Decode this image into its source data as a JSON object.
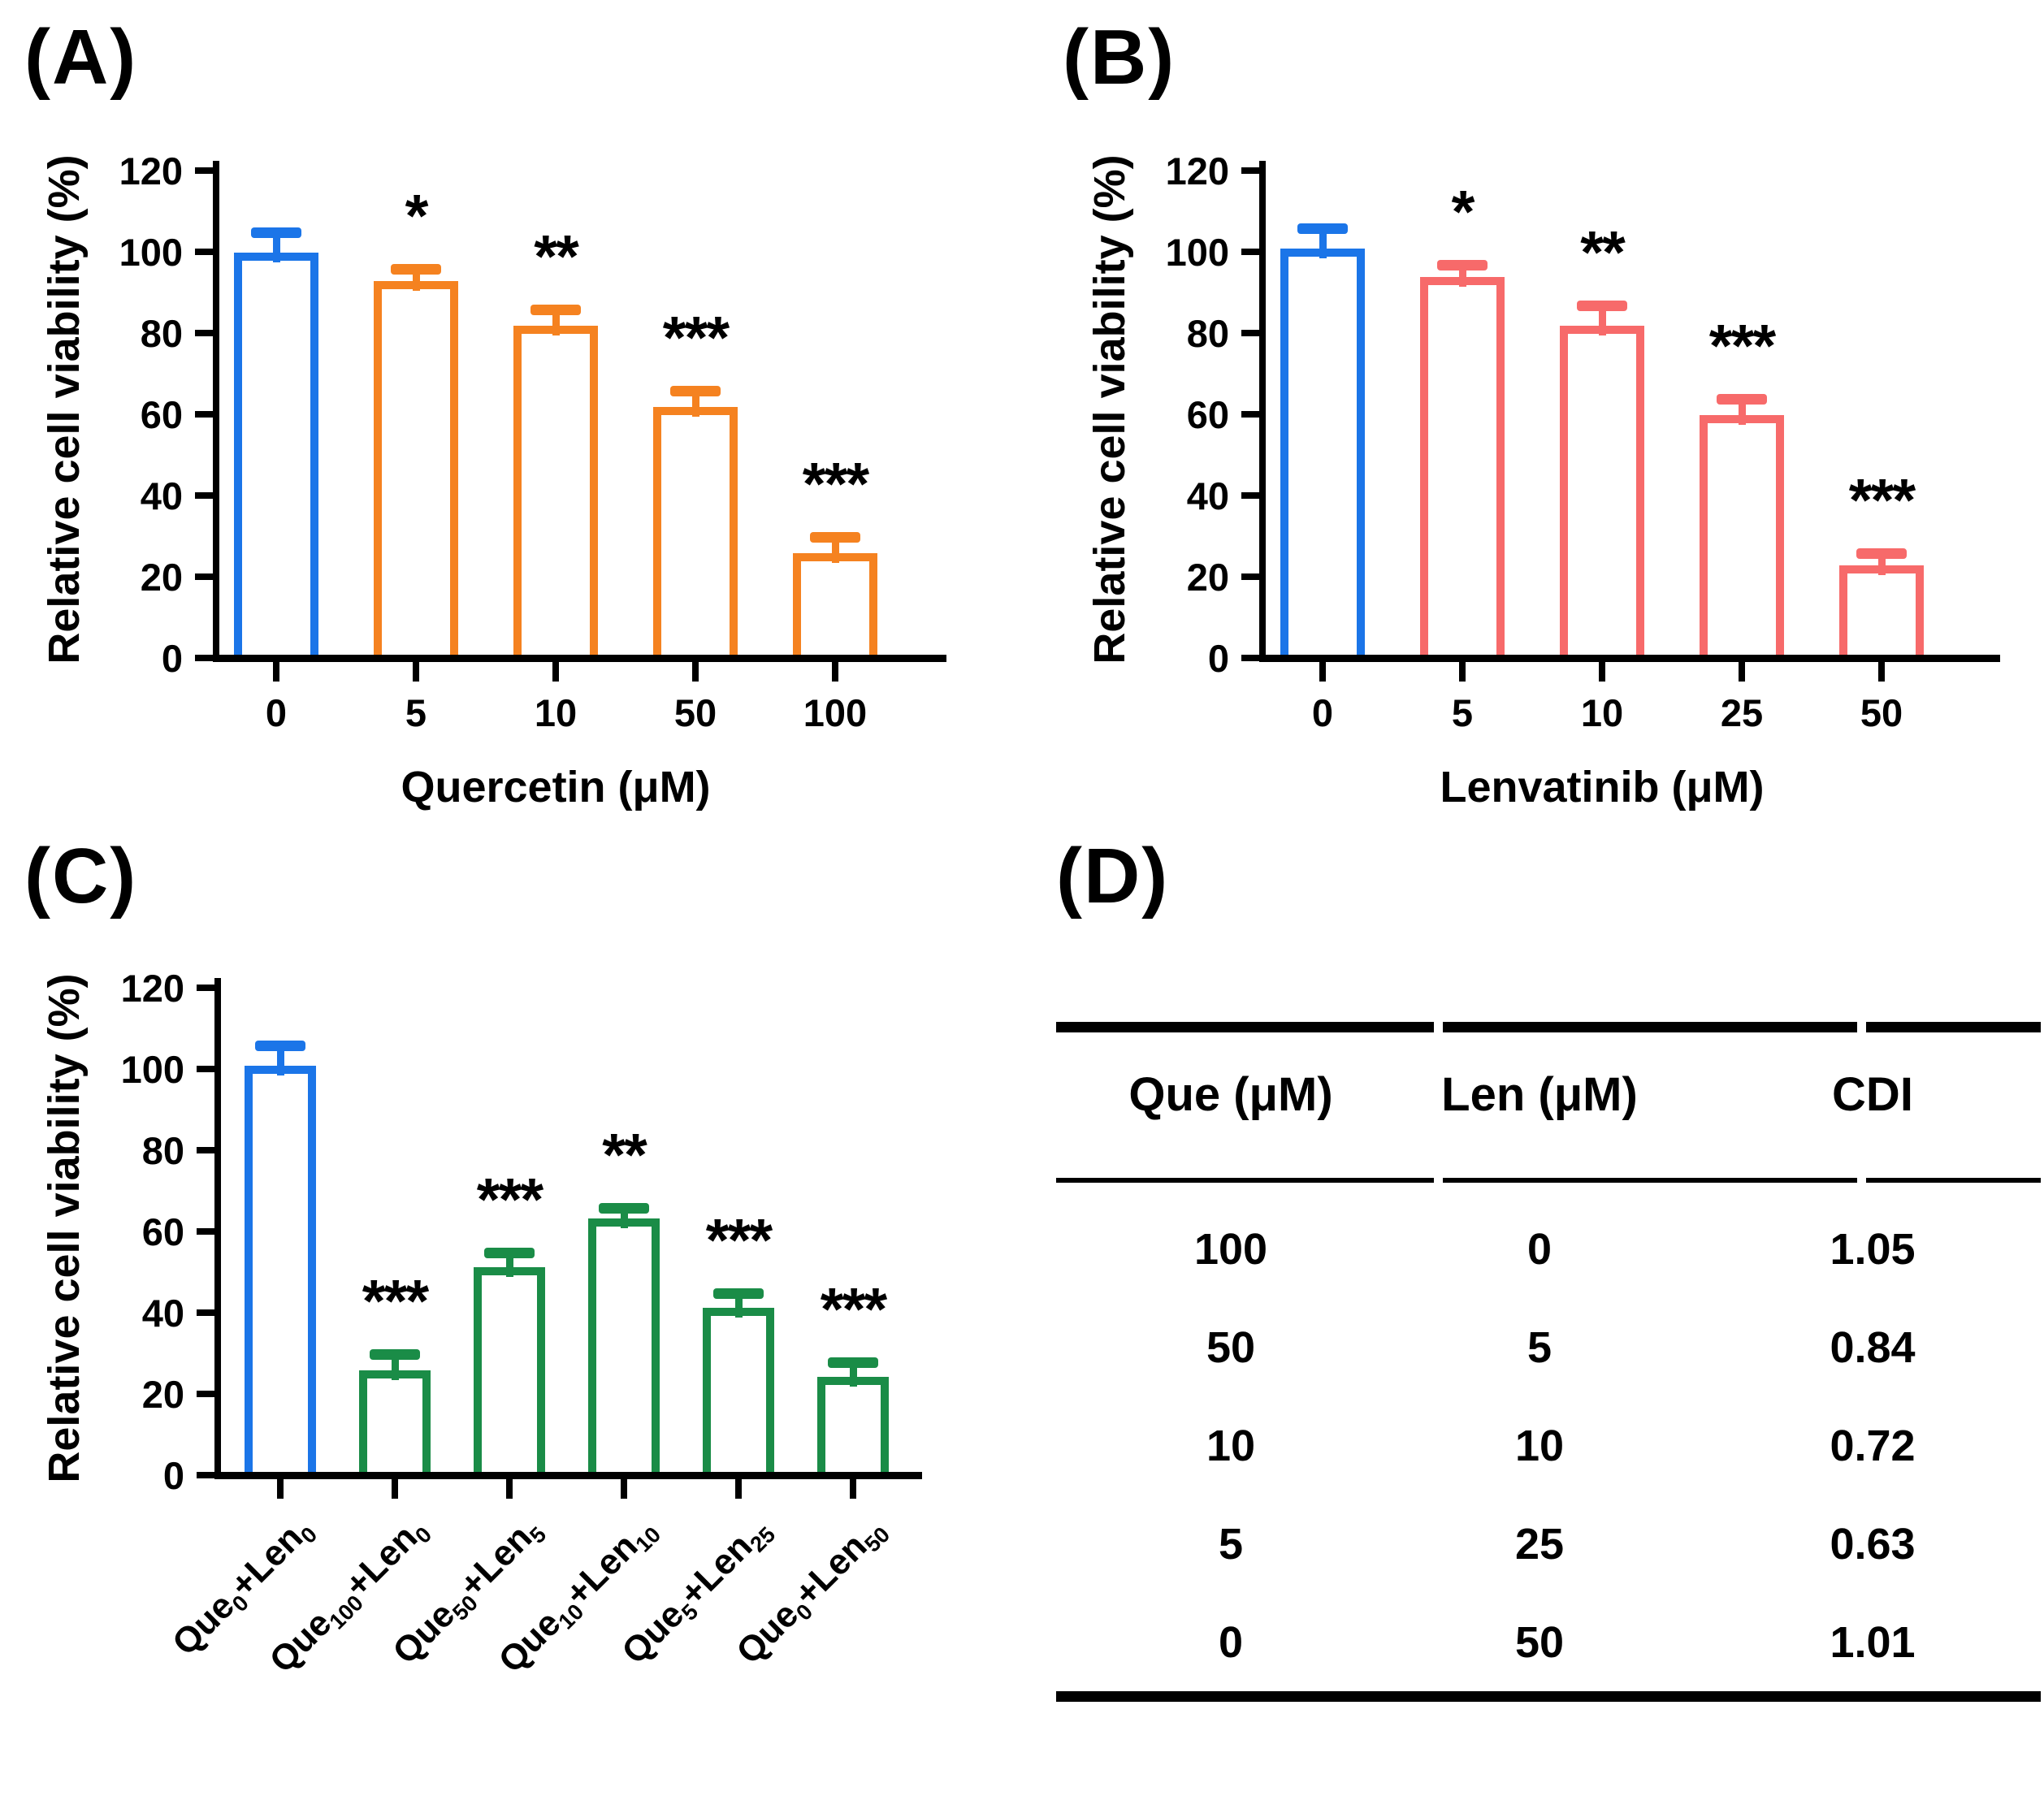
{
  "figure": {
    "background": "#ffffff",
    "panel_labels": {
      "a": "(A)",
      "b": "(B)",
      "c": "(C)",
      "d": "(D)"
    }
  },
  "colors": {
    "control_blue": "#1B75E8",
    "quercetin_orange": "#F58220",
    "lenvatinib_red": "#F76A6A",
    "combination_green": "#1A8C47",
    "axis_black": "#000000",
    "significance_black": "#000000"
  },
  "chart_data": [
    {
      "panel": "A",
      "type": "bar",
      "title": "",
      "ylabel": "Relative cell viability (%)",
      "xlabel": "Quercetin (μM)",
      "ylim": [
        0,
        120
      ],
      "grid": false,
      "legend": null,
      "yticks": [
        "0",
        "20",
        "40",
        "60",
        "80",
        "100",
        "120"
      ],
      "categories": [
        "0",
        "5",
        "10",
        "50",
        "100"
      ],
      "values": [
        99,
        92,
        81,
        61,
        25
      ],
      "errors_plus": [
        5,
        3,
        4,
        4,
        4
      ],
      "significance": [
        "",
        "*",
        "**",
        "***",
        "***"
      ],
      "bar_colors": [
        "#1B75E8",
        "#F58220",
        "#F58220",
        "#F58220",
        "#F58220"
      ],
      "bar_fill": "#ffffff"
    },
    {
      "panel": "B",
      "type": "bar",
      "title": "",
      "ylabel": "Relative cell viability (%)",
      "xlabel": "Lenvatinib (μM)",
      "ylim": [
        0,
        120
      ],
      "grid": false,
      "legend": null,
      "yticks": [
        "0",
        "20",
        "40",
        "60",
        "80",
        "100",
        "120"
      ],
      "categories": [
        "0",
        "5",
        "10",
        "25",
        "50"
      ],
      "values": [
        100,
        93,
        81,
        59,
        22
      ],
      "errors_plus": [
        5,
        3,
        5,
        4,
        3
      ],
      "significance": [
        "",
        "*",
        "**",
        "***",
        "***"
      ],
      "bar_colors": [
        "#1B75E8",
        "#F76A6A",
        "#F76A6A",
        "#F76A6A",
        "#F76A6A"
      ],
      "bar_fill": "#ffffff"
    },
    {
      "panel": "C",
      "type": "bar",
      "title": "",
      "ylabel": "Relative cell viability (%)",
      "xlabel": "",
      "ylim": [
        0,
        120
      ],
      "grid": false,
      "legend": null,
      "yticks": [
        "0",
        "20",
        "40",
        "60",
        "80",
        "100",
        "120"
      ],
      "categories": [
        "Que0+Len0",
        "Que100+Len0",
        "Que50+Len5",
        "Que10+Len10",
        "Que5+Len25",
        "Que0+Len50"
      ],
      "categories_rich": [
        [
          {
            "t": "Que"
          },
          {
            "t": "0",
            "s": 1
          },
          {
            "t": "+Len"
          },
          {
            "t": "0",
            "s": 1
          }
        ],
        [
          {
            "t": "Que"
          },
          {
            "t": "100",
            "s": 1
          },
          {
            "t": "+Len"
          },
          {
            "t": "0",
            "s": 1
          }
        ],
        [
          {
            "t": "Que"
          },
          {
            "t": "50",
            "s": 1
          },
          {
            "t": "+Len"
          },
          {
            "t": "5",
            "s": 1
          }
        ],
        [
          {
            "t": "Que"
          },
          {
            "t": "10",
            "s": 1
          },
          {
            "t": "+Len"
          },
          {
            "t": "10",
            "s": 1
          }
        ],
        [
          {
            "t": "Que"
          },
          {
            "t": "5",
            "s": 1
          },
          {
            "t": "+Len"
          },
          {
            "t": "25",
            "s": 1
          }
        ],
        [
          {
            "t": "Que"
          },
          {
            "t": "0",
            "s": 1
          },
          {
            "t": "+Len"
          },
          {
            "t": "50",
            "s": 1
          }
        ]
      ],
      "values": [
        100,
        25,
        50.5,
        62.5,
        40.5,
        23.5
      ],
      "errors_plus": [
        5,
        4,
        3.5,
        2.5,
        3.5,
        3.5
      ],
      "significance": [
        "",
        "***",
        "***",
        "**",
        "***",
        "***"
      ],
      "bar_colors": [
        "#1B75E8",
        "#1A8C47",
        "#1A8C47",
        "#1A8C47",
        "#1A8C47",
        "#1A8C47"
      ],
      "bar_fill": "#ffffff"
    }
  ],
  "table": {
    "panel": "D",
    "headers": [
      "Que (μM)",
      "Len (μM)",
      "CDI"
    ],
    "rows": [
      [
        "100",
        "0",
        "1.05"
      ],
      [
        "50",
        "5",
        "0.84"
      ],
      [
        "10",
        "10",
        "0.72"
      ],
      [
        "5",
        "25",
        "0.63"
      ],
      [
        "0",
        "50",
        "1.01"
      ]
    ]
  }
}
